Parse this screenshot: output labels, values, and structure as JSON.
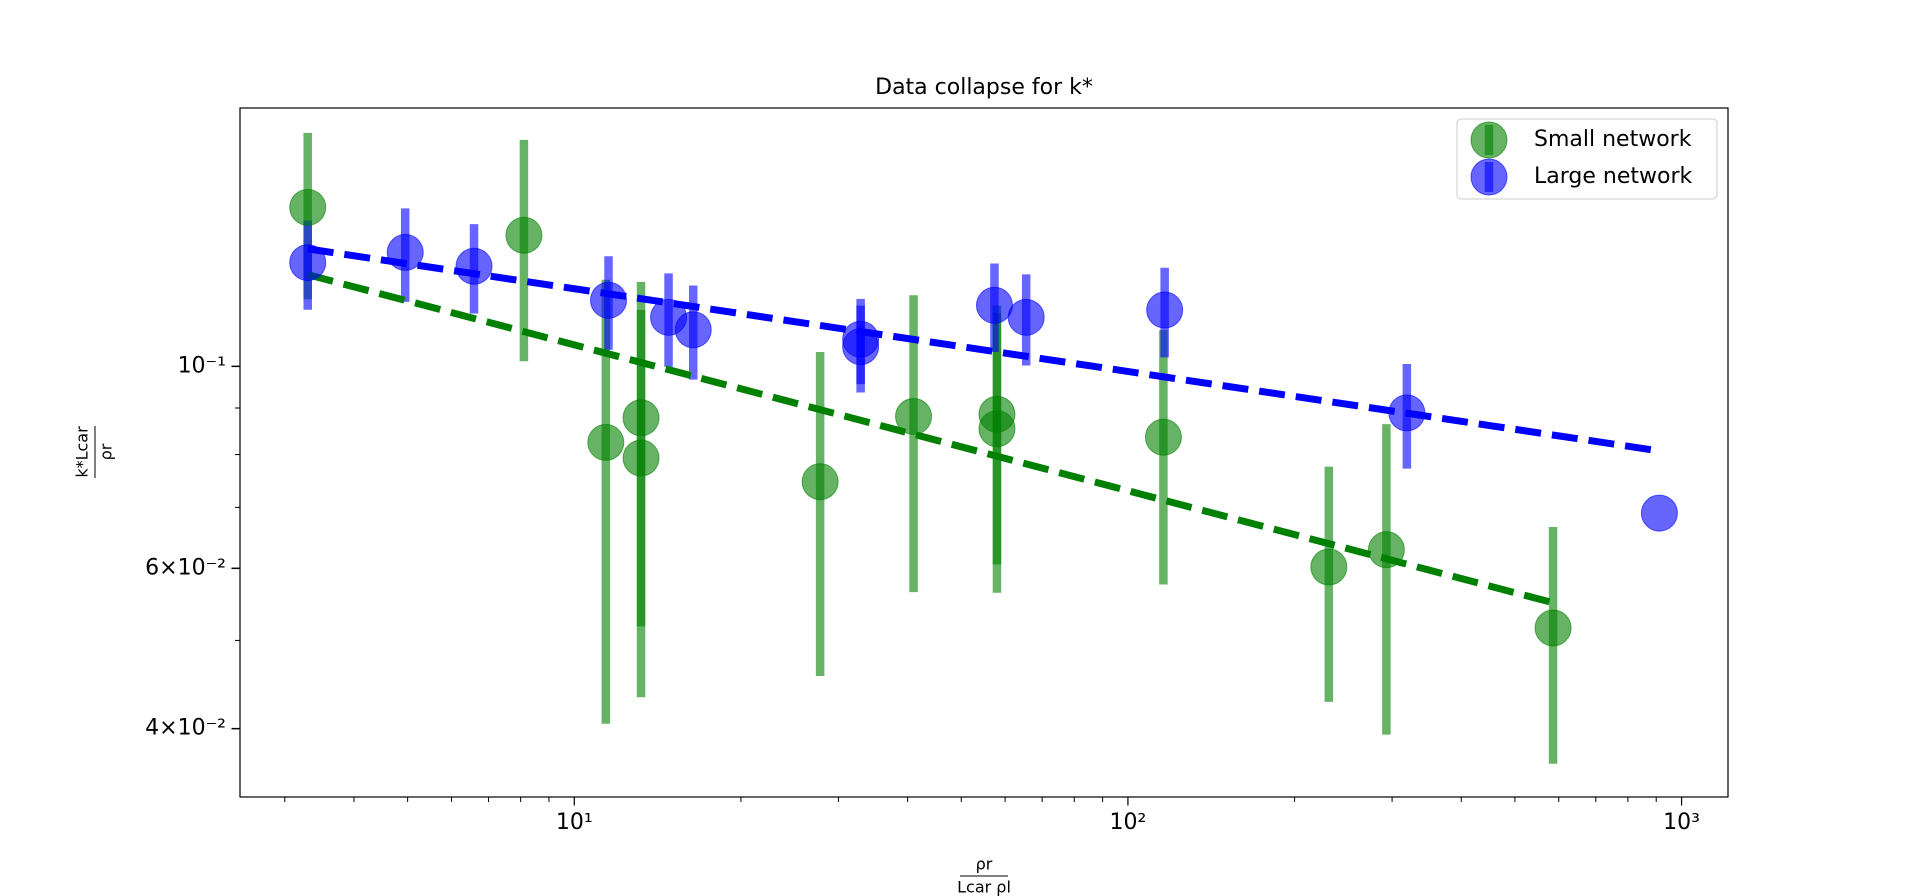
{
  "chart_data": {
    "type": "scatter",
    "title": "Data collapse for k*",
    "xlabel": {
      "numerator": "ρr",
      "denominator": "Lcar ρl"
    },
    "ylabel": {
      "numerator": "k*Lcar",
      "denominator": "ρr"
    },
    "xscale": "log",
    "yscale": "log",
    "xlim": [
      2.49,
      1213
    ],
    "ylim": [
      0.03365,
      0.1922
    ],
    "xticks": [
      {
        "value": 10,
        "label": "10¹"
      },
      {
        "value": 100,
        "label": "10²"
      },
      {
        "value": 1000,
        "label": "10³"
      }
    ],
    "xminor_ticks": [
      3,
      4,
      5,
      6,
      7,
      8,
      9,
      20,
      30,
      40,
      50,
      60,
      70,
      80,
      90,
      200,
      300,
      400,
      500,
      600,
      700,
      800,
      900
    ],
    "yticks": [
      {
        "value": 0.04,
        "label": "4×10⁻²"
      },
      {
        "value": 0.06,
        "label": "6×10⁻²"
      },
      {
        "value": 0.1,
        "label": "10⁻¹"
      }
    ],
    "yminor_ticks": [
      0.05,
      0.07,
      0.08,
      0.09
    ],
    "legend": "upper right",
    "series": [
      {
        "name": "Small network",
        "color": "#008000",
        "x": [
          3.3,
          8.11,
          11.4,
          13.2,
          13.2,
          27.8,
          41.0,
          58.0,
          58.0,
          115.9,
          230.6,
          293,
          586
        ],
        "values": [
          0.1495,
          0.1393,
          0.0825,
          0.0878,
          0.0793,
          0.0747,
          0.0881,
          0.0886,
          0.0854,
          0.0836,
          0.0602,
          0.0629,
          0.0516
        ],
        "errors": [
          0.031,
          0.038,
          0.042,
          0.036,
          0.036,
          0.029,
          0.0316,
          0.028,
          0.029,
          0.026,
          0.0174,
          0.0235,
          0.015
        ]
      },
      {
        "name": "Large network",
        "color": "#0000ff",
        "x": [
          3.3,
          4.95,
          6.59,
          11.53,
          14.8,
          16.4,
          32.9,
          32.9,
          57.4,
          65.5,
          116.5,
          319,
          912
        ],
        "values": [
          0.13,
          0.1334,
          0.1288,
          0.1182,
          0.1132,
          0.1097,
          0.1071,
          0.1051,
          0.1167,
          0.1132,
          0.1153,
          0.0889,
          0.069
        ],
        "errors": [
          0.0146,
          0.0157,
          0.0145,
          0.0139,
          0.0133,
          0.013,
          0.0115,
          0.0115,
          0.013,
          0.013,
          0.013,
          0.0117,
          null
        ]
      }
    ],
    "fits": [
      {
        "color": "#008000",
        "x": [
          3.3,
          586
        ],
        "values": [
          0.1261,
          0.055
        ]
      },
      {
        "color": "#0000ff",
        "x": [
          3.3,
          880
        ],
        "values": [
          0.1346,
          0.081
        ]
      }
    ]
  }
}
